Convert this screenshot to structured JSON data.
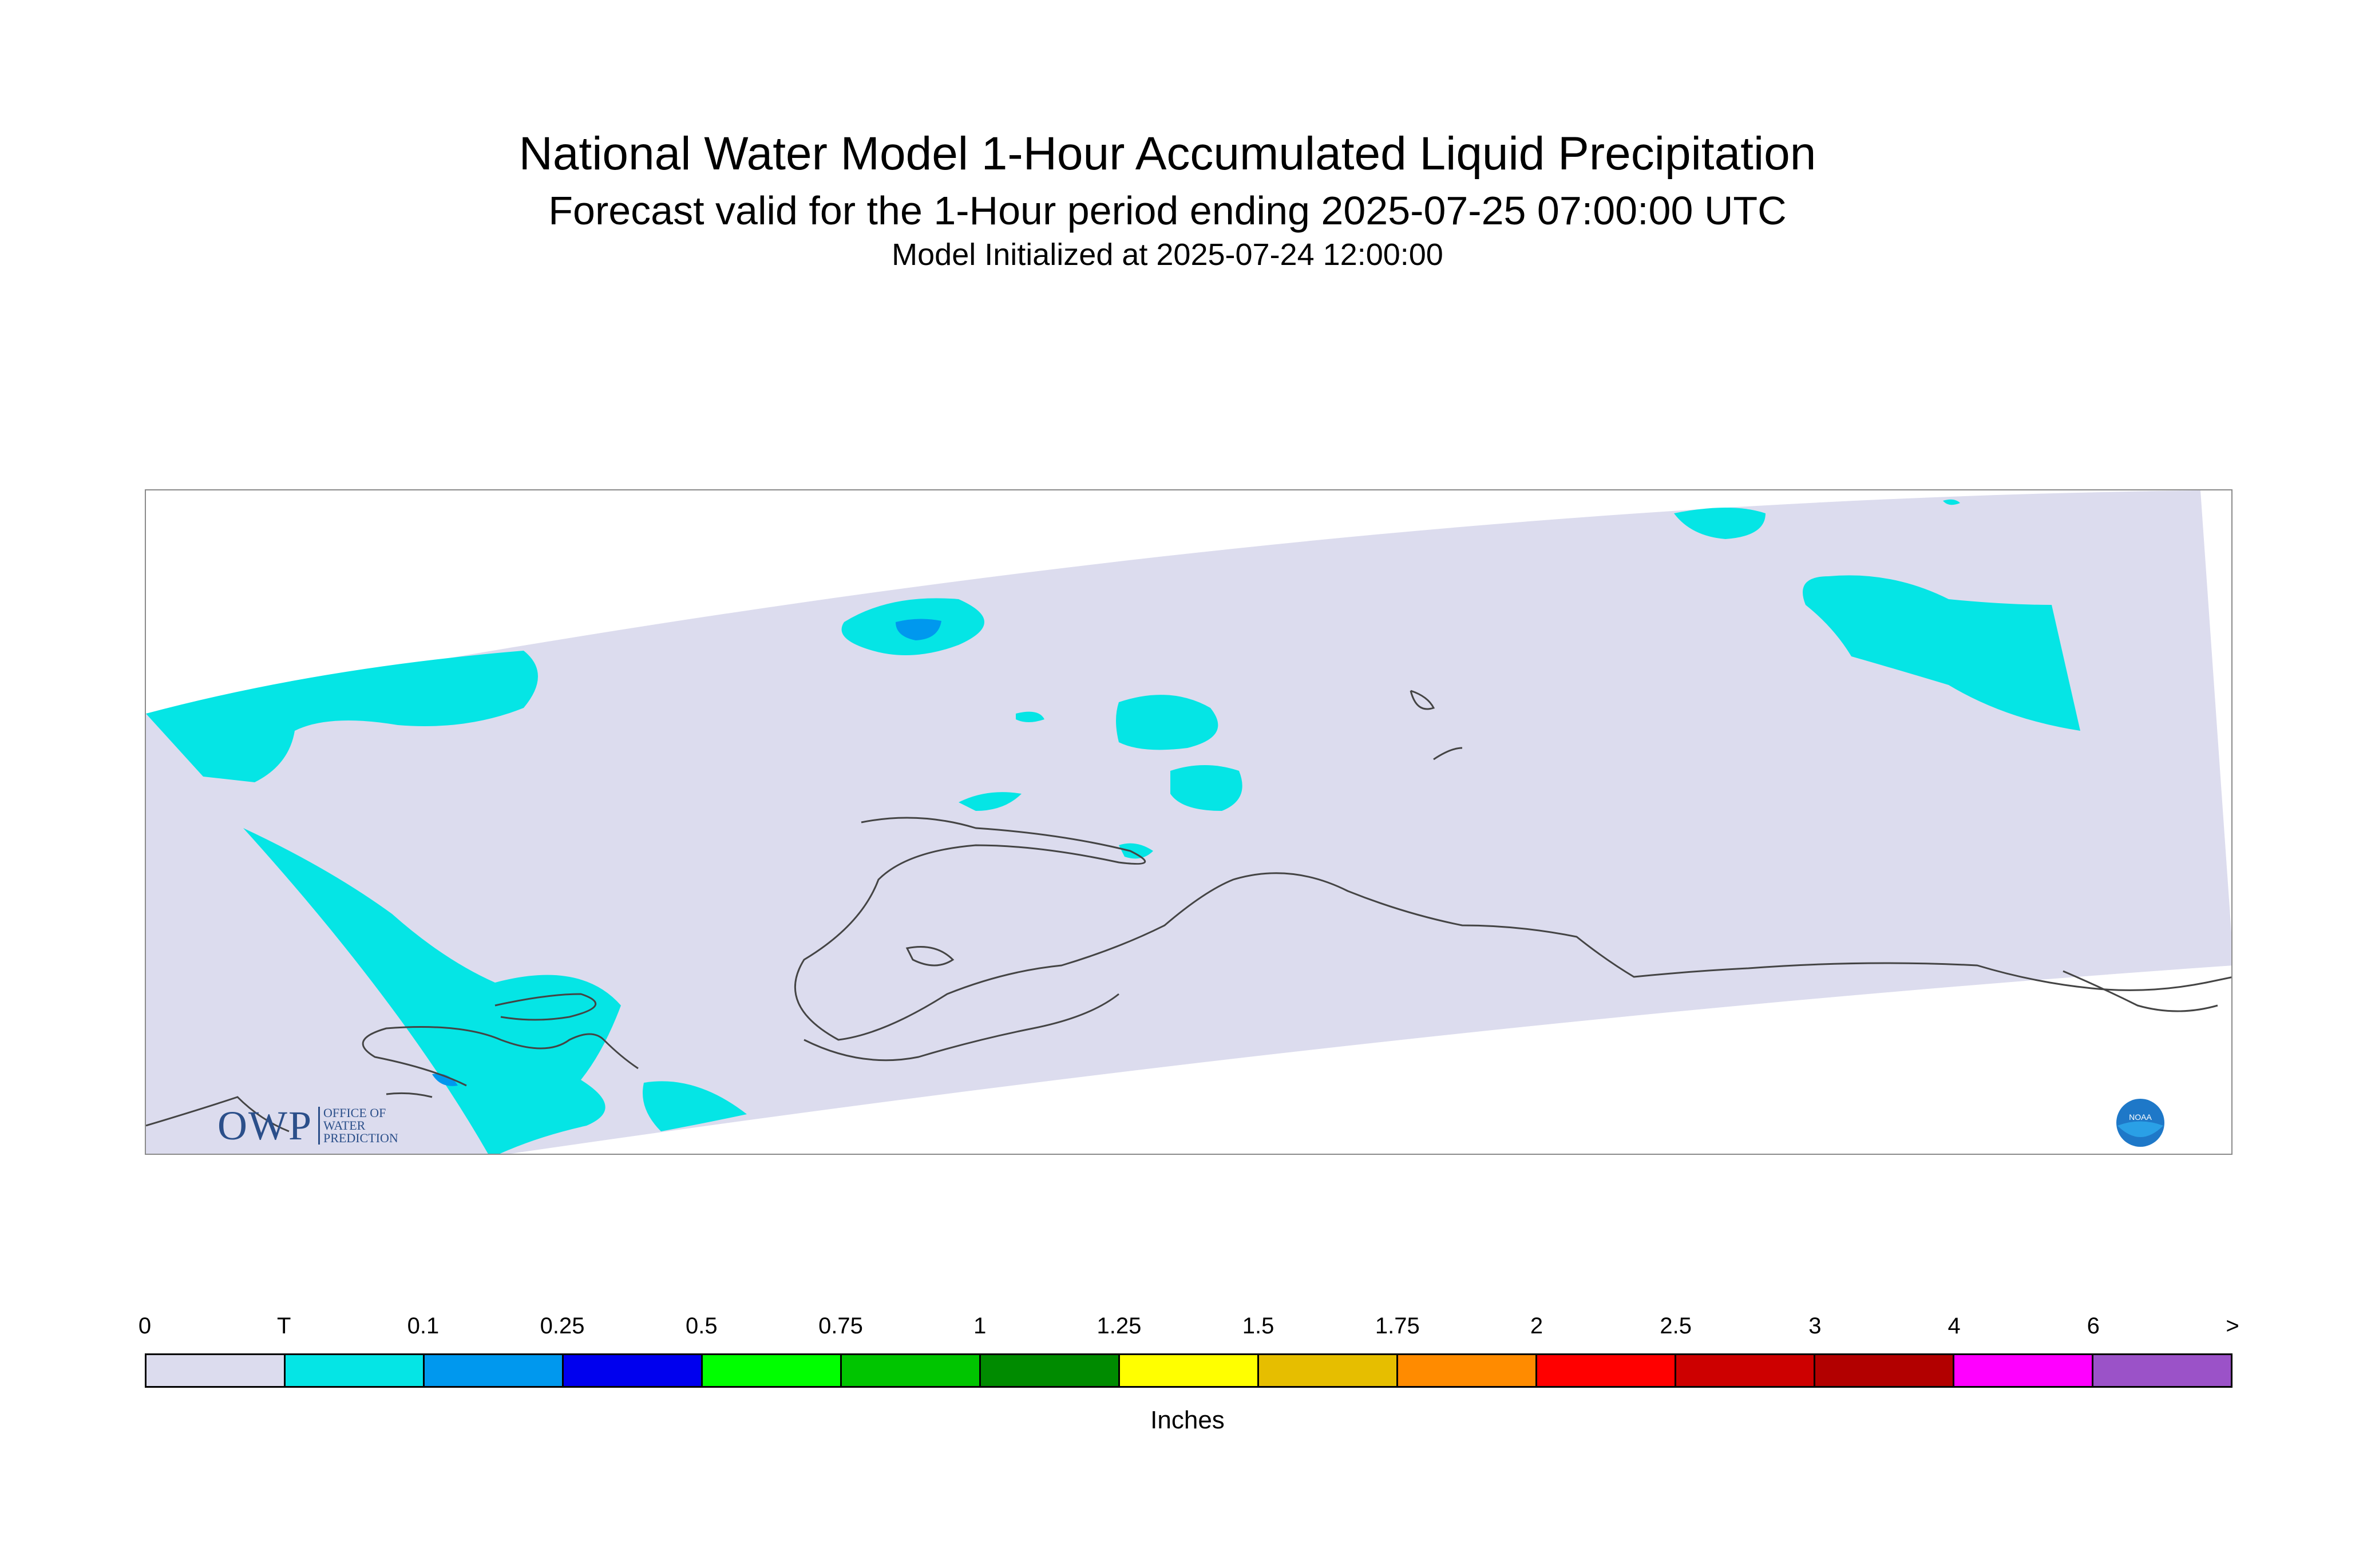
{
  "title": {
    "line1": "National Water Model 1-Hour Accumulated Liquid Precipitation",
    "line2": "Forecast valid for the 1-Hour period ending 2025-07-25 07:00:00 UTC",
    "line3": "Model Initialized at 2025-07-24 12:00:00"
  },
  "map": {
    "domain_color": "#dcdcee",
    "trace_color": "#05e5e5",
    "light_color": "#0098ee",
    "coastline_color": "#444444",
    "logos": {
      "owp_big": "OWP",
      "owp_small": [
        "OFFICE OF",
        "WATER",
        "PREDICTION"
      ],
      "noaa": "NOAA"
    }
  },
  "legend": {
    "units": "Inches",
    "labels": [
      "0",
      "T",
      "0.1",
      "0.25",
      "0.5",
      "0.75",
      "1",
      "1.25",
      "1.5",
      "1.75",
      "2",
      "2.5",
      "3",
      "4",
      "6",
      ">"
    ],
    "colors": [
      "#dcdcee",
      "#05e5e5",
      "#0098ee",
      "#0000ee",
      "#00ff00",
      "#00c500",
      "#008b00",
      "#ffff00",
      "#e6be00",
      "#ff8b00",
      "#ff0000",
      "#cd0000",
      "#b20000",
      "#ff00ff",
      "#9b52c8"
    ]
  }
}
